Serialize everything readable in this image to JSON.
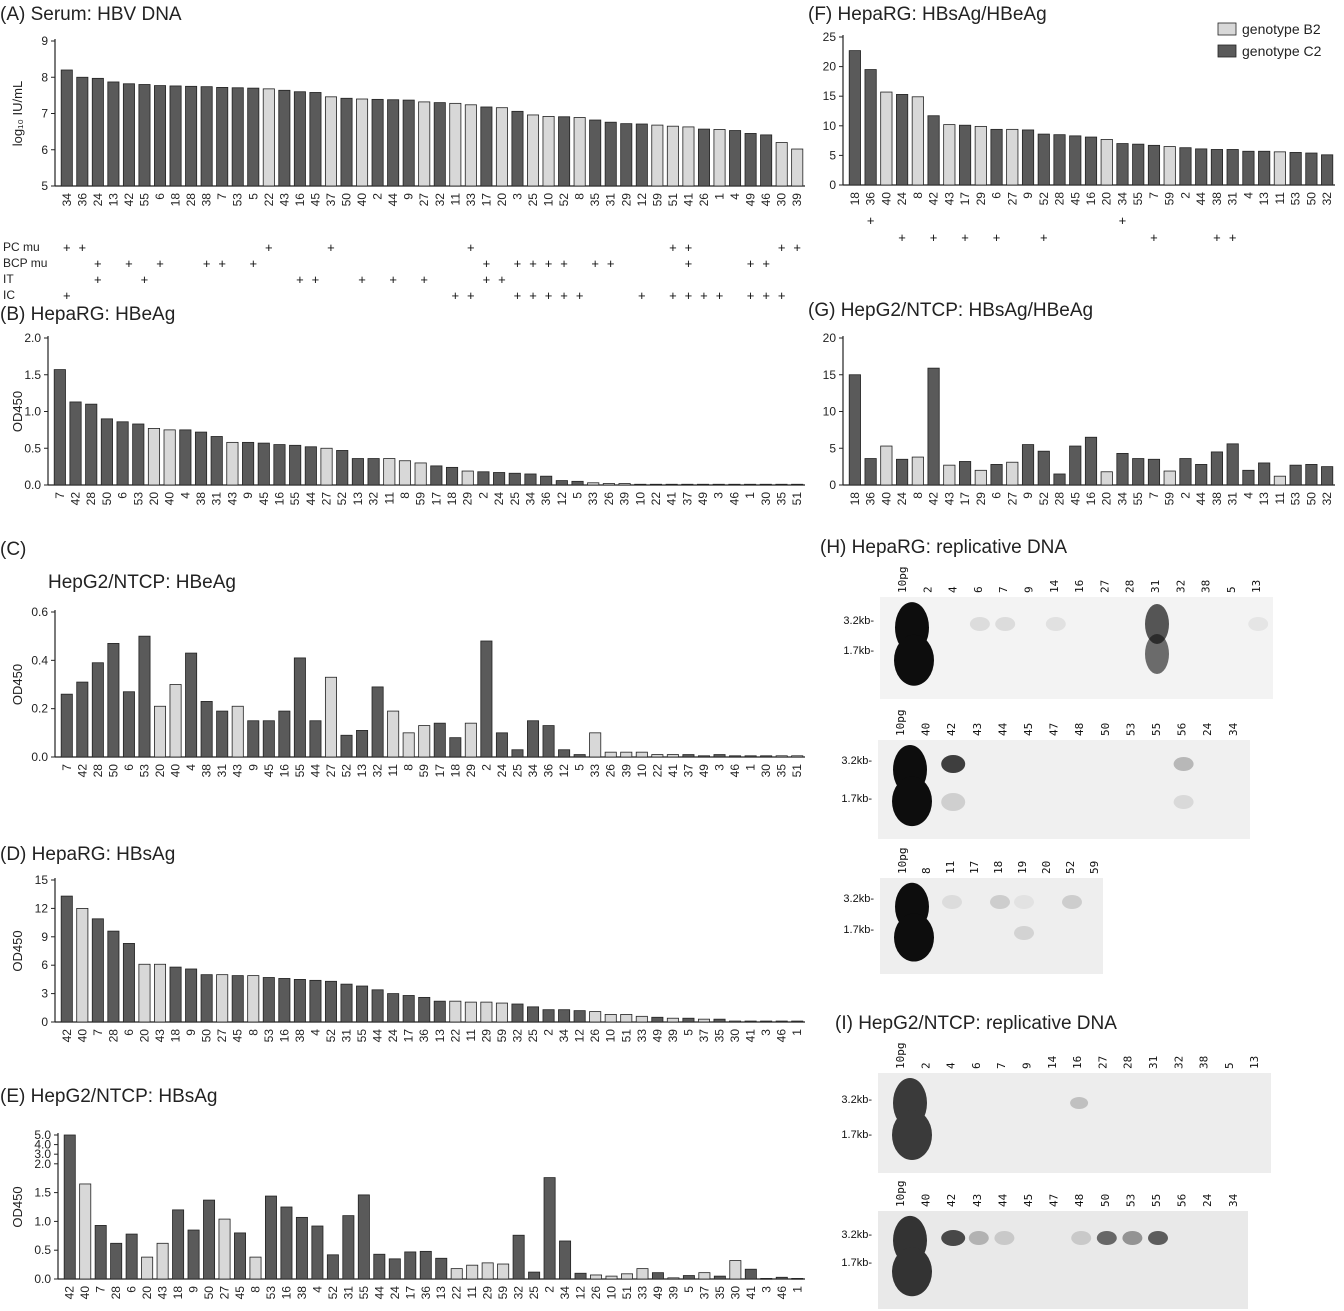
{
  "colors": {
    "genotype_B2": "#d8d8d8",
    "genotype_C2": "#5a5a5a"
  },
  "legend": [
    "genotype B2",
    "genotype C2"
  ],
  "chart_data": [
    {
      "id": "A",
      "type": "bar",
      "title": "(A) Serum: HBV DNA",
      "ylabel": "log₁₀ IU/mL",
      "ylim": [
        5,
        9
      ],
      "yticks": [
        "5",
        "6",
        "7",
        "8",
        "9"
      ],
      "categories": [
        "34",
        "36",
        "24",
        "13",
        "42",
        "55",
        "6",
        "18",
        "28",
        "38",
        "7",
        "53",
        "5",
        "22",
        "43",
        "16",
        "45",
        "37",
        "50",
        "40",
        "2",
        "44",
        "9",
        "27",
        "32",
        "11",
        "33",
        "17",
        "20",
        "3",
        "25",
        "10",
        "52",
        "8",
        "35",
        "31",
        "29",
        "12",
        "59",
        "51",
        "41",
        "26",
        "1",
        "4",
        "49",
        "46",
        "30",
        "39"
      ],
      "values": [
        8.2,
        8.0,
        7.97,
        7.87,
        7.82,
        7.8,
        7.77,
        7.76,
        7.75,
        7.74,
        7.72,
        7.71,
        7.7,
        7.68,
        7.64,
        7.6,
        7.58,
        7.46,
        7.42,
        7.4,
        7.39,
        7.38,
        7.37,
        7.32,
        7.3,
        7.28,
        7.24,
        7.18,
        7.16,
        7.06,
        6.96,
        6.92,
        6.91,
        6.89,
        6.82,
        6.76,
        6.72,
        6.71,
        6.68,
        6.65,
        6.63,
        6.57,
        6.56,
        6.53,
        6.45,
        6.41,
        6.2,
        6.02
      ],
      "genotype": [
        "C",
        "C",
        "C",
        "C",
        "C",
        "C",
        "C",
        "C",
        "C",
        "C",
        "C",
        "C",
        "C",
        "B",
        "C",
        "C",
        "C",
        "B",
        "C",
        "B",
        "C",
        "C",
        "C",
        "B",
        "C",
        "B",
        "B",
        "C",
        "B",
        "C",
        "B",
        "B",
        "C",
        "B",
        "C",
        "C",
        "C",
        "C",
        "B",
        "B",
        "B",
        "C",
        "B",
        "C",
        "C",
        "C",
        "B",
        "B"
      ],
      "annotations": {
        "rows": [
          "PC mu",
          "BCP mu",
          "IT",
          "IC"
        ],
        "marks": [
          {
            "row": "PC mu",
            "categories": [
              "34",
              "36",
              "22",
              "37",
              "33",
              "51",
              "41",
              "30",
              "39"
            ]
          },
          {
            "row": "BCP mu",
            "categories": [
              "24",
              "42",
              "6",
              "38",
              "7",
              "5",
              "17",
              "3",
              "25",
              "10",
              "52",
              "35",
              "31",
              "41",
              "49",
              "46"
            ]
          },
          {
            "row": "IT",
            "categories": [
              "24",
              "55",
              "16",
              "45",
              "40",
              "44",
              "27",
              "17",
              "20"
            ]
          },
          {
            "row": "IC",
            "categories": [
              "34",
              "11",
              "33",
              "3",
              "25",
              "10",
              "52",
              "8",
              "12",
              "51",
              "41",
              "26",
              "1",
              "49",
              "46",
              "30"
            ]
          }
        ]
      }
    },
    {
      "id": "B",
      "type": "bar",
      "title": "(B) HepaRG: HBeAg",
      "ylabel": "OD450",
      "ylim": [
        0,
        2.0
      ],
      "yticks": [
        "0.0",
        "0.5",
        "1.0",
        "1.5",
        "2.0"
      ],
      "categories": [
        "7",
        "42",
        "28",
        "50",
        "6",
        "53",
        "20",
        "40",
        "4",
        "38",
        "31",
        "43",
        "9",
        "45",
        "16",
        "55",
        "44",
        "27",
        "52",
        "13",
        "32",
        "11",
        "8",
        "59",
        "17",
        "18",
        "29",
        "2",
        "24",
        "25",
        "34",
        "36",
        "12",
        "5",
        "33",
        "26",
        "39",
        "10",
        "22",
        "41",
        "37",
        "49",
        "3",
        "46",
        "1",
        "30",
        "35",
        "51"
      ],
      "values": [
        1.57,
        1.13,
        1.1,
        0.9,
        0.86,
        0.83,
        0.77,
        0.75,
        0.75,
        0.72,
        0.66,
        0.58,
        0.58,
        0.57,
        0.55,
        0.54,
        0.52,
        0.5,
        0.47,
        0.36,
        0.36,
        0.36,
        0.33,
        0.3,
        0.26,
        0.24,
        0.19,
        0.18,
        0.17,
        0.16,
        0.15,
        0.12,
        0.06,
        0.05,
        0.03,
        0.02,
        0.02,
        0.01,
        0.01,
        0.01,
        0.01,
        0.01,
        0.01,
        0.01,
        0.01,
        0.01,
        0.01,
        0.01
      ],
      "genotype": [
        "C",
        "C",
        "C",
        "C",
        "C",
        "C",
        "B",
        "B",
        "C",
        "C",
        "C",
        "B",
        "C",
        "C",
        "C",
        "C",
        "C",
        "B",
        "C",
        "C",
        "C",
        "B",
        "B",
        "B",
        "C",
        "C",
        "B",
        "C",
        "C",
        "C",
        "C",
        "C",
        "C",
        "C",
        "B",
        "B",
        "B",
        "B",
        "B",
        "B",
        "C",
        "C",
        "C",
        "C",
        "C",
        "C",
        "B",
        "B"
      ]
    },
    {
      "id": "C",
      "type": "bar",
      "title": "(C)",
      "subtitle": "HepG2/NTCP: HBeAg",
      "ylabel": "OD450",
      "ylim": [
        0,
        0.6
      ],
      "yticks": [
        "0.0",
        "0.2",
        "0.4",
        "0.6"
      ],
      "categories": [
        "7",
        "42",
        "28",
        "50",
        "6",
        "53",
        "20",
        "40",
        "4",
        "38",
        "31",
        "43",
        "9",
        "45",
        "16",
        "55",
        "44",
        "27",
        "52",
        "13",
        "32",
        "11",
        "8",
        "59",
        "17",
        "18",
        "29",
        "2",
        "24",
        "25",
        "34",
        "36",
        "12",
        "5",
        "33",
        "26",
        "39",
        "10",
        "22",
        "41",
        "37",
        "49",
        "3",
        "46",
        "1",
        "30",
        "35",
        "51"
      ],
      "values": [
        0.26,
        0.31,
        0.39,
        0.47,
        0.27,
        0.5,
        0.21,
        0.3,
        0.43,
        0.23,
        0.19,
        0.21,
        0.15,
        0.15,
        0.19,
        0.41,
        0.15,
        0.33,
        0.09,
        0.11,
        0.29,
        0.19,
        0.1,
        0.13,
        0.14,
        0.08,
        0.14,
        0.48,
        0.1,
        0.03,
        0.15,
        0.13,
        0.03,
        0.01,
        0.1,
        0.02,
        0.02,
        0.02,
        0.01,
        0.01,
        0.01,
        0.005,
        0.01,
        0.005,
        0.005,
        0.005,
        0.005,
        0.005
      ],
      "genotype": [
        "C",
        "C",
        "C",
        "C",
        "C",
        "C",
        "B",
        "B",
        "C",
        "C",
        "C",
        "B",
        "C",
        "C",
        "C",
        "C",
        "C",
        "B",
        "C",
        "C",
        "C",
        "B",
        "B",
        "B",
        "C",
        "C",
        "B",
        "C",
        "C",
        "C",
        "C",
        "C",
        "C",
        "C",
        "B",
        "B",
        "B",
        "B",
        "B",
        "B",
        "C",
        "C",
        "C",
        "C",
        "C",
        "C",
        "B",
        "B"
      ]
    },
    {
      "id": "D",
      "type": "bar",
      "title": "(D)  HepaRG: HBsAg",
      "ylabel": "OD450",
      "ylim": [
        0,
        15
      ],
      "yticks": [
        "0",
        "3",
        "6",
        "9",
        "12",
        "15"
      ],
      "categories": [
        "42",
        "40",
        "7",
        "28",
        "6",
        "20",
        "43",
        "18",
        "9",
        "50",
        "27",
        "45",
        "8",
        "53",
        "16",
        "38",
        "4",
        "52",
        "31",
        "55",
        "44",
        "24",
        "17",
        "36",
        "13",
        "22",
        "11",
        "29",
        "59",
        "32",
        "25",
        "2",
        "34",
        "12",
        "26",
        "10",
        "51",
        "33",
        "49",
        "39",
        "5",
        "37",
        "35",
        "30",
        "41",
        "3",
        "46",
        "1"
      ],
      "values": [
        13.3,
        12.0,
        10.9,
        9.6,
        8.3,
        6.1,
        6.1,
        5.8,
        5.6,
        5.0,
        5.0,
        4.9,
        4.9,
        4.7,
        4.6,
        4.5,
        4.4,
        4.3,
        4.0,
        3.8,
        3.4,
        3.0,
        2.8,
        2.6,
        2.2,
        2.2,
        2.1,
        2.1,
        2.0,
        1.9,
        1.6,
        1.3,
        1.3,
        1.2,
        1.1,
        0.8,
        0.8,
        0.6,
        0.5,
        0.4,
        0.4,
        0.3,
        0.3,
        0.1,
        0.1,
        0.1,
        0.1,
        0.1
      ],
      "genotype": [
        "C",
        "B",
        "C",
        "C",
        "C",
        "B",
        "B",
        "C",
        "C",
        "C",
        "B",
        "C",
        "B",
        "C",
        "C",
        "C",
        "C",
        "C",
        "C",
        "C",
        "C",
        "C",
        "C",
        "C",
        "C",
        "B",
        "B",
        "B",
        "B",
        "C",
        "C",
        "C",
        "C",
        "C",
        "B",
        "B",
        "B",
        "B",
        "C",
        "B",
        "C",
        "B",
        "C",
        "B",
        "C",
        "C",
        "C",
        "C"
      ]
    },
    {
      "id": "E",
      "type": "bar",
      "title": "(E)  HepG2/NTCP: HBsAg",
      "ylabel": "OD450",
      "ylim": [
        0,
        5.0
      ],
      "yticks": [
        "0.0",
        "0.5",
        "1.0",
        "1.5",
        "2.0",
        "3.0",
        "4.0",
        "5.0"
      ],
      "categories": [
        "42",
        "40",
        "7",
        "28",
        "6",
        "20",
        "43",
        "18",
        "9",
        "50",
        "27",
        "45",
        "8",
        "53",
        "16",
        "38",
        "4",
        "52",
        "31",
        "55",
        "44",
        "24",
        "17",
        "36",
        "13",
        "22",
        "11",
        "29",
        "59",
        "32",
        "25",
        "2",
        "34",
        "12",
        "26",
        "10",
        "51",
        "33",
        "49",
        "39",
        "5",
        "37",
        "35",
        "30",
        "41",
        "3",
        "46",
        "1"
      ],
      "values": [
        5.0,
        1.65,
        0.93,
        0.62,
        0.78,
        0.38,
        0.62,
        1.2,
        0.85,
        1.37,
        1.04,
        0.8,
        0.38,
        1.44,
        1.25,
        1.07,
        0.92,
        0.42,
        1.1,
        1.46,
        0.43,
        0.35,
        0.47,
        0.48,
        0.36,
        0.18,
        0.24,
        0.28,
        0.26,
        0.76,
        0.12,
        1.76,
        0.66,
        0.1,
        0.07,
        0.05,
        0.09,
        0.18,
        0.11,
        0.02,
        0.06,
        0.11,
        0.05,
        0.32,
        0.17,
        0.01,
        0.03,
        0.01
      ],
      "genotype": [
        "C",
        "B",
        "C",
        "C",
        "C",
        "B",
        "B",
        "C",
        "C",
        "C",
        "B",
        "C",
        "B",
        "C",
        "C",
        "C",
        "C",
        "C",
        "C",
        "C",
        "C",
        "C",
        "C",
        "C",
        "C",
        "B",
        "B",
        "B",
        "B",
        "C",
        "C",
        "C",
        "C",
        "C",
        "B",
        "B",
        "B",
        "B",
        "C",
        "B",
        "C",
        "B",
        "C",
        "B",
        "C",
        "C",
        "C",
        "C"
      ]
    },
    {
      "id": "F",
      "type": "bar",
      "title": "(F)  HepaRG: HBsAg/HBeAg",
      "ylabel": "",
      "ylim": [
        0,
        25
      ],
      "yticks": [
        "0",
        "5",
        "10",
        "15",
        "20",
        "25"
      ],
      "categories": [
        "18",
        "36",
        "40",
        "24",
        "8",
        "42",
        "43",
        "17",
        "29",
        "6",
        "27",
        "9",
        "52",
        "28",
        "45",
        "16",
        "20",
        "34",
        "55",
        "7",
        "59",
        "2",
        "44",
        "38",
        "31",
        "4",
        "13",
        "11",
        "53",
        "50",
        "32"
      ],
      "values": [
        22.7,
        19.5,
        15.7,
        15.3,
        14.9,
        11.7,
        10.2,
        10.1,
        9.9,
        9.4,
        9.4,
        9.3,
        8.6,
        8.5,
        8.3,
        8.1,
        7.7,
        7.0,
        6.9,
        6.7,
        6.5,
        6.3,
        6.1,
        6.0,
        6.0,
        5.7,
        5.7,
        5.6,
        5.5,
        5.4,
        5.1
      ],
      "genotype": [
        "C",
        "C",
        "B",
        "C",
        "B",
        "C",
        "B",
        "C",
        "B",
        "C",
        "B",
        "C",
        "C",
        "C",
        "C",
        "C",
        "B",
        "C",
        "C",
        "C",
        "B",
        "C",
        "C",
        "C",
        "C",
        "C",
        "C",
        "B",
        "C",
        "C",
        "C"
      ],
      "annotations": {
        "rows": [
          "",
          ""
        ],
        "marks": [
          {
            "row": "r1",
            "categories": [
              "36",
              "34"
            ]
          },
          {
            "row": "r2",
            "categories": [
              "24",
              "42",
              "17",
              "6",
              "52",
              "7",
              "38",
              "31"
            ]
          }
        ]
      }
    },
    {
      "id": "G",
      "type": "bar",
      "title": "(G)  HepG2/NTCP: HBsAg/HBeAg",
      "ylabel": "",
      "ylim": [
        0,
        20
      ],
      "yticks": [
        "0",
        "5",
        "10",
        "15",
        "20"
      ],
      "categories": [
        "18",
        "36",
        "40",
        "24",
        "8",
        "42",
        "43",
        "17",
        "29",
        "6",
        "27",
        "9",
        "52",
        "28",
        "45",
        "16",
        "20",
        "34",
        "55",
        "7",
        "59",
        "2",
        "44",
        "38",
        "31",
        "4",
        "13",
        "11",
        "53",
        "50",
        "32"
      ],
      "values": [
        15.0,
        3.6,
        5.3,
        3.5,
        3.8,
        15.9,
        2.7,
        3.2,
        2.0,
        2.8,
        3.1,
        5.5,
        4.6,
        1.5,
        5.3,
        6.5,
        1.8,
        4.3,
        3.6,
        3.5,
        1.9,
        3.6,
        2.8,
        4.5,
        5.6,
        2.0,
        3.0,
        1.2,
        2.7,
        2.8,
        2.5
      ],
      "genotype": [
        "C",
        "C",
        "B",
        "C",
        "B",
        "C",
        "B",
        "C",
        "B",
        "C",
        "B",
        "C",
        "C",
        "C",
        "C",
        "C",
        "B",
        "C",
        "C",
        "C",
        "B",
        "C",
        "C",
        "C",
        "C",
        "C",
        "C",
        "B",
        "C",
        "C",
        "C"
      ]
    }
  ],
  "blots": {
    "H": {
      "title": "(H)  HepaRG: replicative DNA",
      "size_marker_top": "3.2kb-",
      "size_marker_bottom": "1.7kb-",
      "rows": [
        [
          "10pg",
          "2",
          "4",
          "6",
          "7",
          "9",
          "14",
          "16",
          "27",
          "28",
          "31",
          "32",
          "38",
          "5",
          "13"
        ],
        [
          "10pg",
          "40",
          "42",
          "43",
          "44",
          "45",
          "47",
          "48",
          "50",
          "53",
          "55",
          "56",
          "24",
          "34"
        ],
        [
          "10pg",
          "8",
          "11",
          "17",
          "18",
          "19",
          "20",
          "52",
          "59"
        ]
      ]
    },
    "I": {
      "title": "(I)  HepG2/NTCP: replicative DNA",
      "size_marker_top": "3.2kb-",
      "size_marker_bottom": "1.7kb-",
      "rows": [
        [
          "10pg",
          "2",
          "4",
          "6",
          "7",
          "9",
          "14",
          "16",
          "27",
          "28",
          "31",
          "32",
          "38",
          "5",
          "13"
        ],
        [
          "10pg",
          "40",
          "42",
          "43",
          "44",
          "45",
          "47",
          "48",
          "50",
          "53",
          "55",
          "56",
          "24",
          "34"
        ]
      ]
    }
  }
}
